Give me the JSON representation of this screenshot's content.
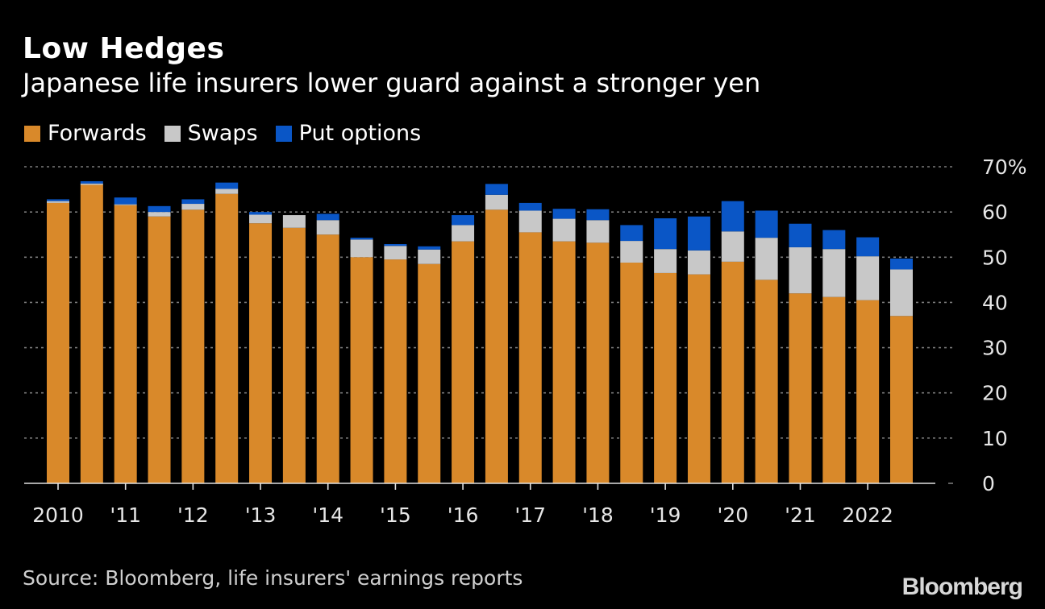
{
  "header": {
    "title": "Low Hedges",
    "subtitle": "Japanese life insurers lower guard against a stronger yen"
  },
  "footer": {
    "source": "Source: Bloomberg, life insurers' earnings reports",
    "logo": "Bloomberg"
  },
  "chart_data": {
    "type": "bar",
    "stacked": true,
    "title": "Low Hedges",
    "subtitle": "Japanese life insurers lower guard against a stronger yen",
    "xlabel": "",
    "ylabel": "",
    "ylim": [
      0,
      70
    ],
    "yticks": [
      0,
      10,
      20,
      30,
      40,
      50,
      60,
      70
    ],
    "ytick_labels": [
      "0",
      "10",
      "20",
      "30",
      "40",
      "50",
      "60",
      "70%"
    ],
    "grid": true,
    "legend_position": "top-left",
    "colors": {
      "Forwards": "#d9892a",
      "Swaps": "#c8c8c8",
      "Put options": "#0a56c6"
    },
    "x_tick_labels": [
      {
        "label": "2010",
        "bar_index": 0
      },
      {
        "label": "'11",
        "bar_index": 2
      },
      {
        "label": "'12",
        "bar_index": 4
      },
      {
        "label": "'13",
        "bar_index": 6
      },
      {
        "label": "'14",
        "bar_index": 8
      },
      {
        "label": "'15",
        "bar_index": 10
      },
      {
        "label": "'16",
        "bar_index": 12
      },
      {
        "label": "'17",
        "bar_index": 14
      },
      {
        "label": "'18",
        "bar_index": 16
      },
      {
        "label": "'19",
        "bar_index": 18
      },
      {
        "label": "'20",
        "bar_index": 20
      },
      {
        "label": "'21",
        "bar_index": 22
      },
      {
        "label": "2022",
        "bar_index": 24
      }
    ],
    "series": [
      {
        "name": "Forwards",
        "values": [
          62,
          66,
          61.5,
          59,
          60.5,
          64,
          57.5,
          56.5,
          55,
          50,
          49.5,
          48.5,
          53.5,
          60.5,
          55.5,
          53.5,
          53.2,
          48.8,
          46.5,
          46.2,
          49,
          45,
          42,
          41.2,
          40.5,
          37
        ]
      },
      {
        "name": "Swaps",
        "values": [
          0.4,
          0.3,
          0.2,
          1,
          1.3,
          1.1,
          1.9,
          2.8,
          3.2,
          3.9,
          3,
          3.2,
          3.6,
          3.3,
          4.8,
          5,
          5,
          4.8,
          5.3,
          5.3,
          6.7,
          9.3,
          10.2,
          10.6,
          9.7,
          10.3
        ]
      },
      {
        "name": "Put options",
        "values": [
          0.4,
          0.5,
          1.5,
          1.3,
          1,
          1.4,
          0.6,
          0,
          1.4,
          0.4,
          0.4,
          0.7,
          2.2,
          2.4,
          1.7,
          2.2,
          2.4,
          3.5,
          6.8,
          7.5,
          6.7,
          6,
          5.2,
          4.2,
          4.2,
          2.4
        ]
      }
    ]
  }
}
